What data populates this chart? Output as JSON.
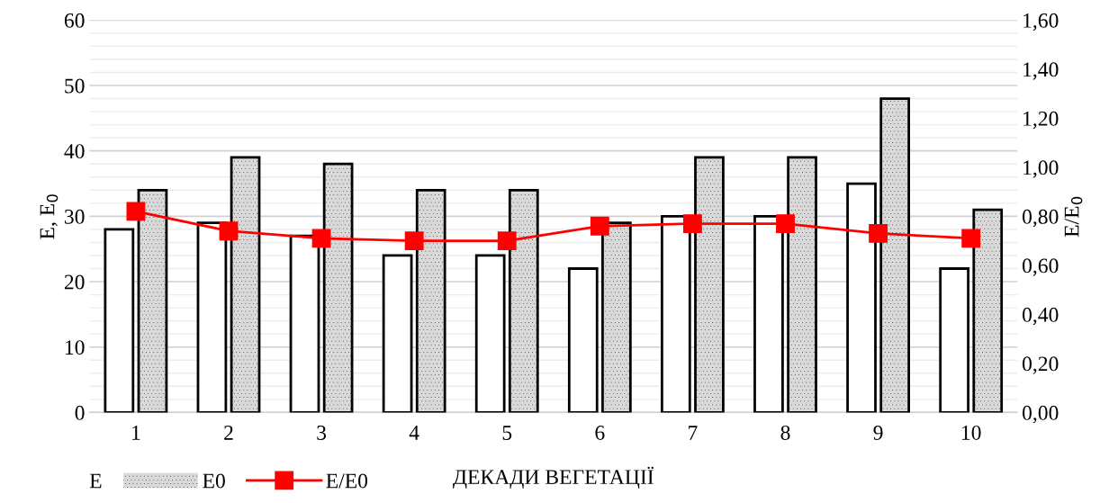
{
  "chart_data": {
    "type": "bar",
    "xlabel": "ДЕКАДИ ВЕГЕТАЦІЇ",
    "ylabel": "E, E$_{0}$",
    "y2label": "E/E$_{0}$",
    "categories": [
      "1",
      "2",
      "3",
      "4",
      "5",
      "6",
      "7",
      "8",
      "9",
      "10"
    ],
    "series": [
      {
        "name": "E",
        "color": "#ffffff",
        "values": [
          28,
          29,
          27,
          24,
          24,
          22,
          30,
          30,
          35,
          22
        ]
      },
      {
        "name": "E0",
        "color": "#d9d9d9",
        "values": [
          34,
          39,
          38,
          34,
          34,
          29,
          39,
          39,
          48,
          31
        ]
      },
      {
        "name": "E/E0",
        "type": "line",
        "axis": "y2",
        "color": "#ff0000",
        "marker": "square",
        "values": [
          0.82,
          0.74,
          0.71,
          0.7,
          0.7,
          0.76,
          0.77,
          0.77,
          0.73,
          0.71
        ]
      }
    ],
    "ylim": [
      0,
      60
    ],
    "yticks": [
      0,
      10,
      20,
      30,
      40,
      50,
      60
    ],
    "y2lim": [
      0,
      1.6
    ],
    "y2ticks": [
      {
        "value": 0,
        "label": "0,00"
      },
      {
        "value": 0.2,
        "label": "0,20"
      },
      {
        "value": 0.4,
        "label": "0,40"
      },
      {
        "value": 0.6,
        "label": "0,60"
      },
      {
        "value": 0.8,
        "label": "0,80"
      },
      {
        "value": 1.0,
        "label": "1,00"
      },
      {
        "value": 1.2,
        "label": "1,20"
      },
      {
        "value": 1.4,
        "label": "1,40"
      },
      {
        "value": 1.6,
        "label": "1,60"
      }
    ],
    "grid": "y",
    "legend": "bottom left"
  }
}
